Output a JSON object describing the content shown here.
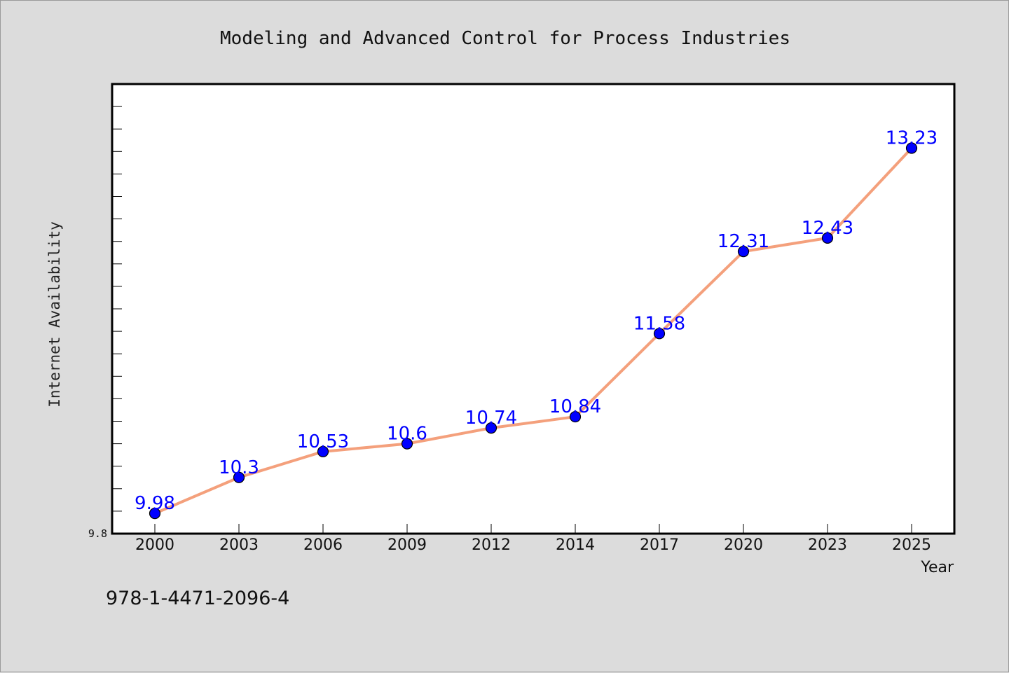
{
  "chart_data": {
    "type": "line",
    "title": "Modeling and Advanced Control for Process Industries",
    "xlabel": "Year",
    "ylabel": "Internet Availability",
    "categories": [
      "2000",
      "2003",
      "2006",
      "2009",
      "2012",
      "2014",
      "2017",
      "2020",
      "2023",
      "2025"
    ],
    "series": [
      {
        "values": [
          9.98,
          10.3,
          10.53,
          10.6,
          10.74,
          10.84,
          11.58,
          12.31,
          12.43,
          13.23
        ],
        "data_labels": [
          "9.98",
          "10.3",
          "10.53",
          "10.6",
          "10.74",
          "10.84",
          "11.58",
          "12.31",
          "12.43",
          "13.23"
        ]
      }
    ],
    "ylim": [
      9.8,
      13.8
    ],
    "y_tick_labels": [
      "9.8"
    ],
    "minor_tick_step": 0.2,
    "grid": false,
    "legend": "none",
    "colors": {
      "line": "#f4a07c",
      "marker": "#0000ff",
      "data_label": "#0000ff",
      "plot_bg": "#ffffff",
      "page_bg": "#dcdcdc"
    }
  },
  "footer": {
    "isbn": "978-1-4471-2096-4"
  }
}
